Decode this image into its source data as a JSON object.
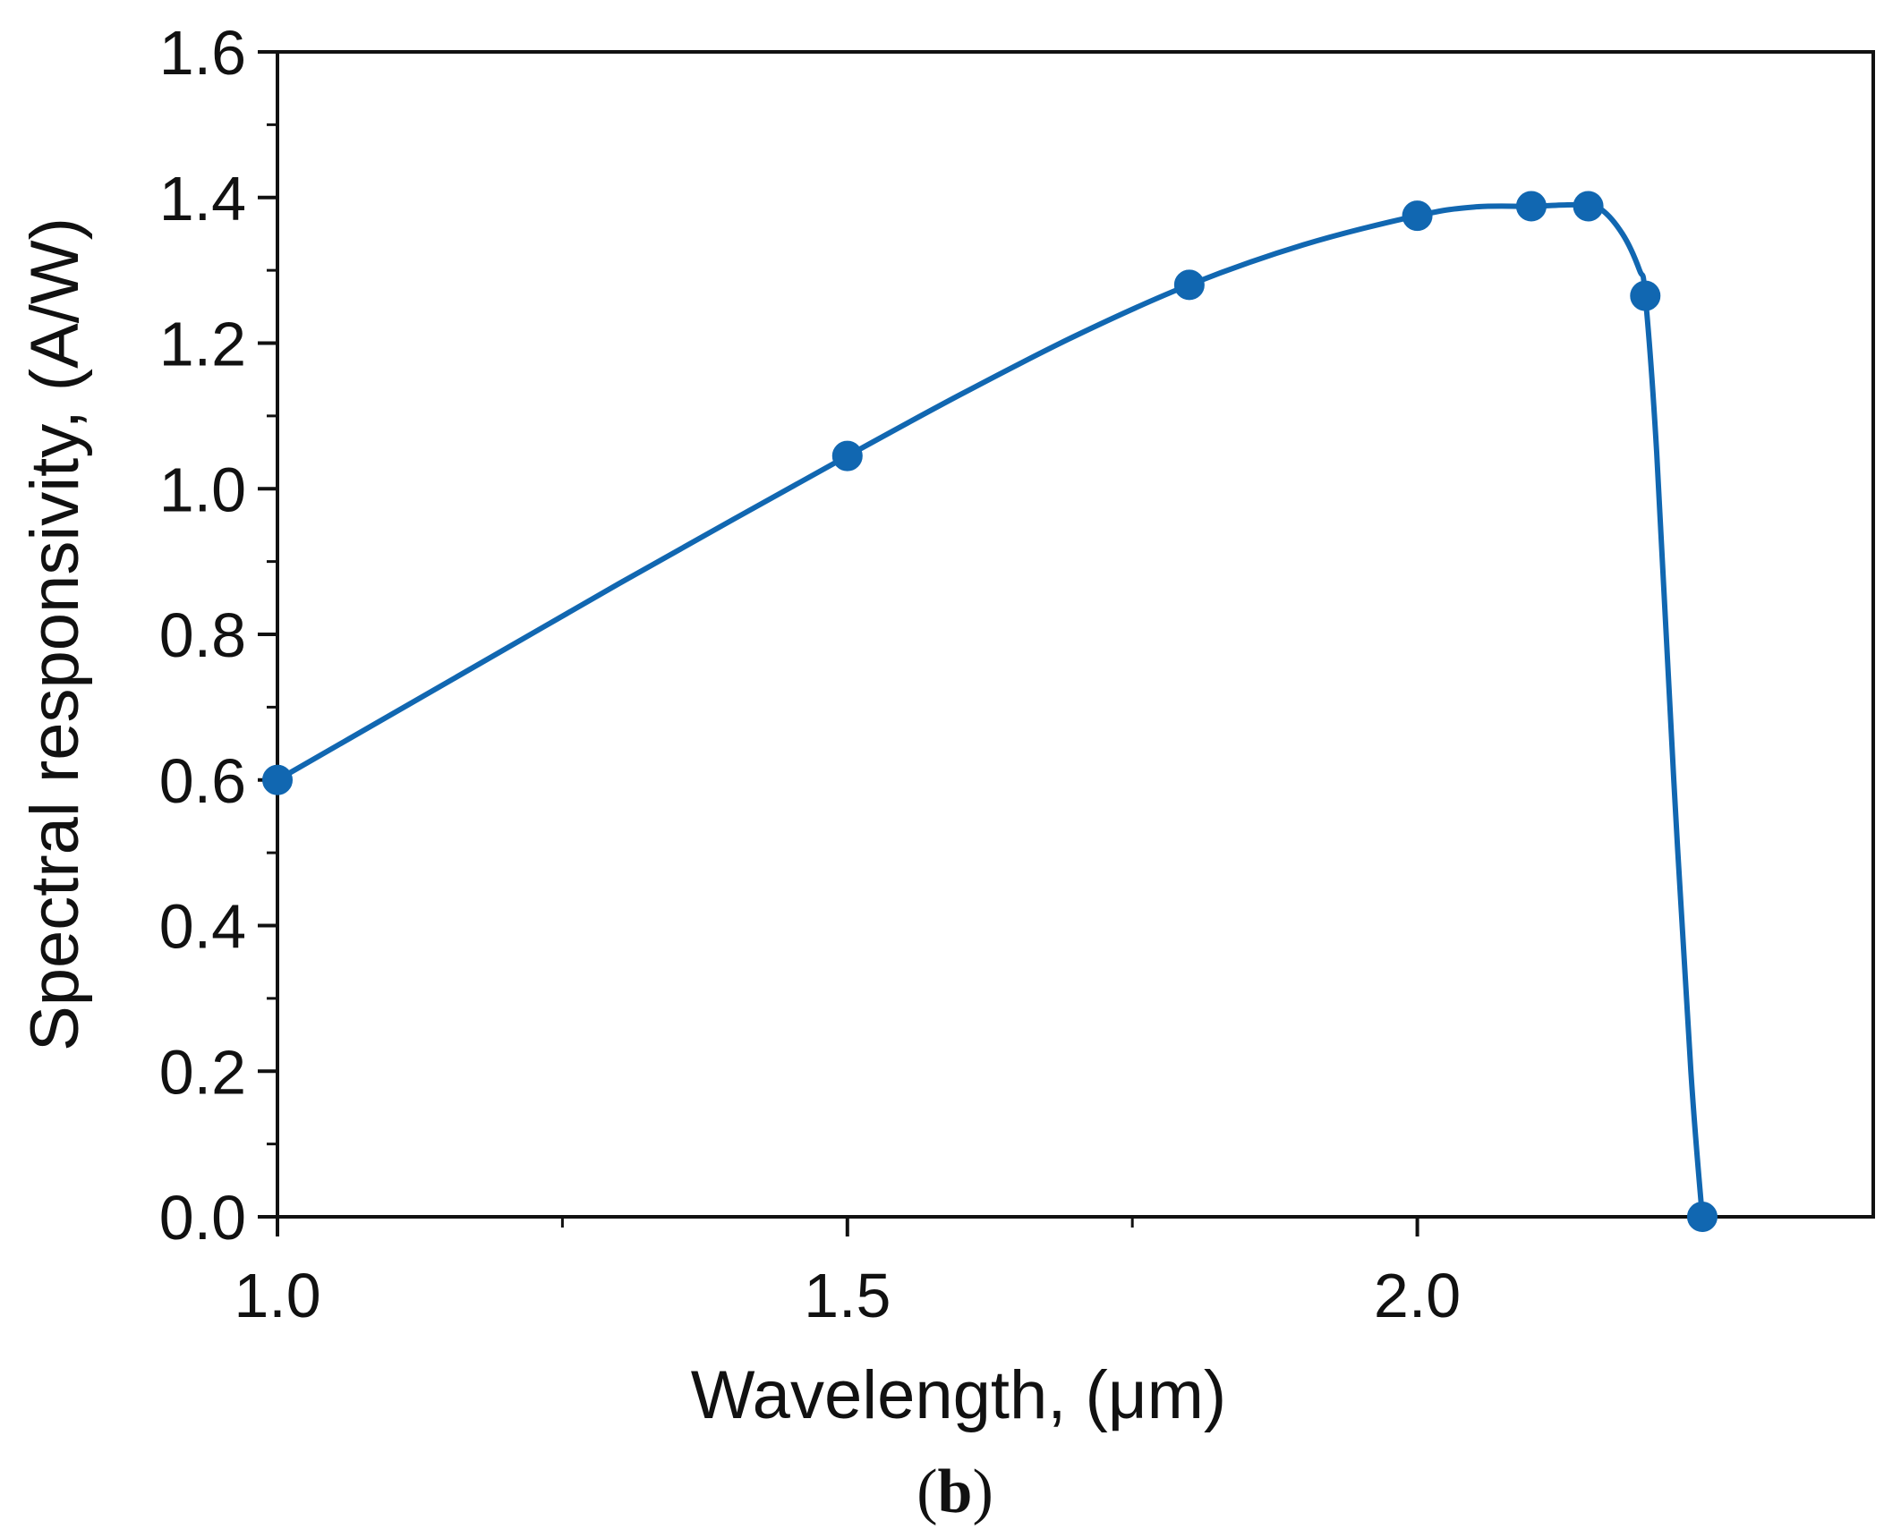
{
  "chart_data": {
    "type": "line",
    "title": "",
    "panel_label": {
      "open": "(",
      "letter": "b",
      "close": ")"
    },
    "xlabel": "Wavelength, (μm)",
    "ylabel": "Spectral responsivity, (A/W)",
    "xlim": [
      1.0,
      2.4
    ],
    "ylim": [
      0.0,
      1.6
    ],
    "x_major_ticks": [
      1.0,
      1.5,
      2.0
    ],
    "x_tick_labels": [
      "1.0",
      "1.5",
      "2.0"
    ],
    "x_minor_ticks": [
      1.25,
      1.75,
      2.25
    ],
    "y_major_ticks": [
      0.0,
      0.2,
      0.4,
      0.6,
      0.8,
      1.0,
      1.2,
      1.4,
      1.6
    ],
    "y_tick_labels": [
      "0.0",
      "0.2",
      "0.4",
      "0.6",
      "0.8",
      "1.0",
      "1.2",
      "1.4",
      "1.6"
    ],
    "y_minor_ticks": [
      0.1,
      0.3,
      0.5,
      0.7,
      0.9,
      1.1,
      1.3,
      1.5
    ],
    "grid": false,
    "legend": "none",
    "color": "#1167b1",
    "series": [
      {
        "name": "Spectral responsivity",
        "points": [
          {
            "x": 1.0,
            "y": 0.6
          },
          {
            "x": 1.5,
            "y": 1.045
          },
          {
            "x": 1.8,
            "y": 1.28
          },
          {
            "x": 2.0,
            "y": 1.375
          },
          {
            "x": 2.1,
            "y": 1.388
          },
          {
            "x": 2.15,
            "y": 1.388
          },
          {
            "x": 2.2,
            "y": 1.265
          },
          {
            "x": 2.25,
            "y": 0.0
          }
        ],
        "curve": [
          {
            "x": 1.0,
            "y": 0.6
          },
          {
            "x": 1.1,
            "y": 0.69
          },
          {
            "x": 1.2,
            "y": 0.78
          },
          {
            "x": 1.3,
            "y": 0.87
          },
          {
            "x": 1.4,
            "y": 0.958
          },
          {
            "x": 1.5,
            "y": 1.045
          },
          {
            "x": 1.6,
            "y": 1.13
          },
          {
            "x": 1.7,
            "y": 1.21
          },
          {
            "x": 1.8,
            "y": 1.28
          },
          {
            "x": 1.9,
            "y": 1.335
          },
          {
            "x": 2.0,
            "y": 1.375
          },
          {
            "x": 2.05,
            "y": 1.387
          },
          {
            "x": 2.1,
            "y": 1.388
          },
          {
            "x": 2.14,
            "y": 1.39
          },
          {
            "x": 2.16,
            "y": 1.385
          },
          {
            "x": 2.18,
            "y": 1.35
          },
          {
            "x": 2.195,
            "y": 1.3
          },
          {
            "x": 2.2,
            "y": 1.265
          },
          {
            "x": 2.21,
            "y": 1.05
          },
          {
            "x": 2.225,
            "y": 0.6
          },
          {
            "x": 2.24,
            "y": 0.2
          },
          {
            "x": 2.25,
            "y": 0.0
          }
        ]
      }
    ]
  }
}
